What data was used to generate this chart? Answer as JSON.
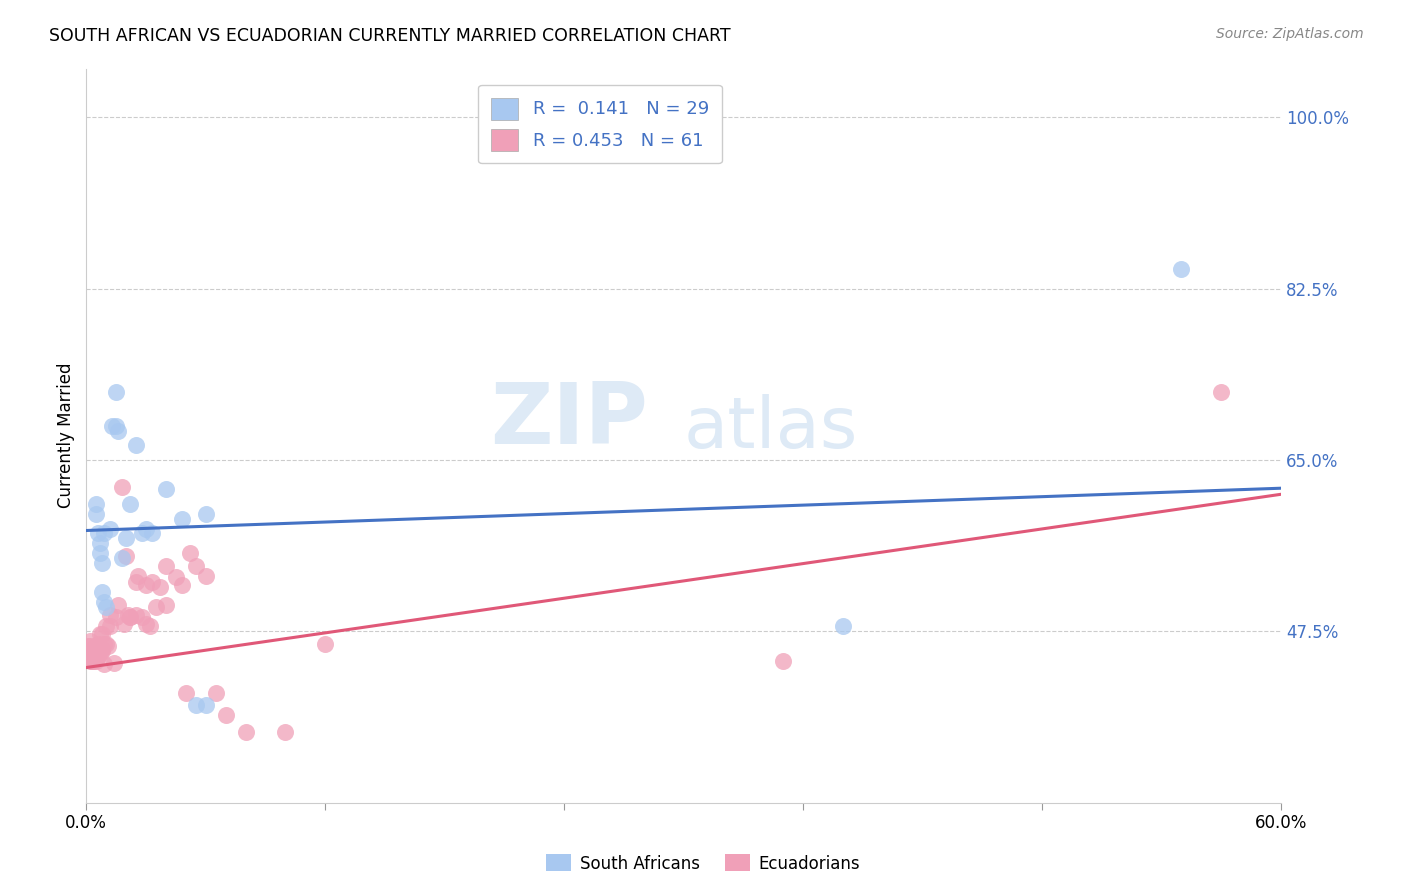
{
  "title": "SOUTH AFRICAN VS ECUADORIAN CURRENTLY MARRIED CORRELATION CHART",
  "source": "Source: ZipAtlas.com",
  "ylabel": "Currently Married",
  "xlim": [
    0.0,
    0.6
  ],
  "ylim": [
    0.3,
    1.05
  ],
  "xtick_positions": [
    0.0,
    0.12,
    0.24,
    0.36,
    0.48,
    0.6
  ],
  "yticks": [
    0.475,
    0.65,
    0.825,
    1.0
  ],
  "yticklabels": [
    "47.5%",
    "65.0%",
    "82.5%",
    "100.0%"
  ],
  "blue_color": "#A8C8F0",
  "pink_color": "#F0A0B8",
  "blue_line_color": "#4472C4",
  "pink_line_color": "#E05878",
  "tick_label_color": "#4472C4",
  "R_blue": 0.141,
  "N_blue": 29,
  "R_pink": 0.453,
  "N_pink": 61,
  "blue_intercept": 0.578,
  "blue_slope": 0.072,
  "pink_intercept": 0.438,
  "pink_slope": 0.295,
  "blue_x": [
    0.005,
    0.005,
    0.006,
    0.007,
    0.007,
    0.008,
    0.008,
    0.009,
    0.009,
    0.01,
    0.012,
    0.013,
    0.015,
    0.015,
    0.016,
    0.018,
    0.02,
    0.022,
    0.025,
    0.028,
    0.03,
    0.033,
    0.04,
    0.048,
    0.055,
    0.06,
    0.06,
    0.38,
    0.55
  ],
  "blue_y": [
    0.595,
    0.605,
    0.575,
    0.555,
    0.565,
    0.545,
    0.515,
    0.505,
    0.575,
    0.5,
    0.58,
    0.685,
    0.685,
    0.72,
    0.68,
    0.55,
    0.57,
    0.605,
    0.665,
    0.575,
    0.58,
    0.575,
    0.62,
    0.59,
    0.4,
    0.595,
    0.4,
    0.48,
    0.845
  ],
  "pink_x": [
    0.001,
    0.001,
    0.002,
    0.002,
    0.002,
    0.003,
    0.003,
    0.003,
    0.004,
    0.004,
    0.005,
    0.005,
    0.005,
    0.006,
    0.006,
    0.007,
    0.007,
    0.008,
    0.008,
    0.008,
    0.009,
    0.009,
    0.01,
    0.01,
    0.011,
    0.012,
    0.012,
    0.014,
    0.015,
    0.016,
    0.018,
    0.019,
    0.02,
    0.021,
    0.022,
    0.022,
    0.025,
    0.025,
    0.026,
    0.028,
    0.03,
    0.03,
    0.032,
    0.033,
    0.035,
    0.037,
    0.04,
    0.04,
    0.045,
    0.048,
    0.05,
    0.052,
    0.055,
    0.06,
    0.065,
    0.07,
    0.08,
    0.1,
    0.12,
    0.35,
    0.57
  ],
  "pink_y": [
    0.455,
    0.46,
    0.445,
    0.46,
    0.465,
    0.445,
    0.455,
    0.445,
    0.455,
    0.445,
    0.455,
    0.445,
    0.46,
    0.45,
    0.462,
    0.452,
    0.472,
    0.455,
    0.457,
    0.472,
    0.442,
    0.462,
    0.462,
    0.48,
    0.46,
    0.48,
    0.492,
    0.443,
    0.49,
    0.502,
    0.622,
    0.482,
    0.552,
    0.492,
    0.49,
    0.49,
    0.525,
    0.492,
    0.532,
    0.49,
    0.522,
    0.482,
    0.48,
    0.525,
    0.5,
    0.52,
    0.502,
    0.542,
    0.53,
    0.522,
    0.412,
    0.555,
    0.542,
    0.532,
    0.412,
    0.39,
    0.372,
    0.372,
    0.462,
    0.445,
    0.72
  ],
  "watermark_zip": "ZIP",
  "watermark_atlas": "atlas",
  "background_color": "#FFFFFF",
  "grid_color": "#CCCCCC"
}
